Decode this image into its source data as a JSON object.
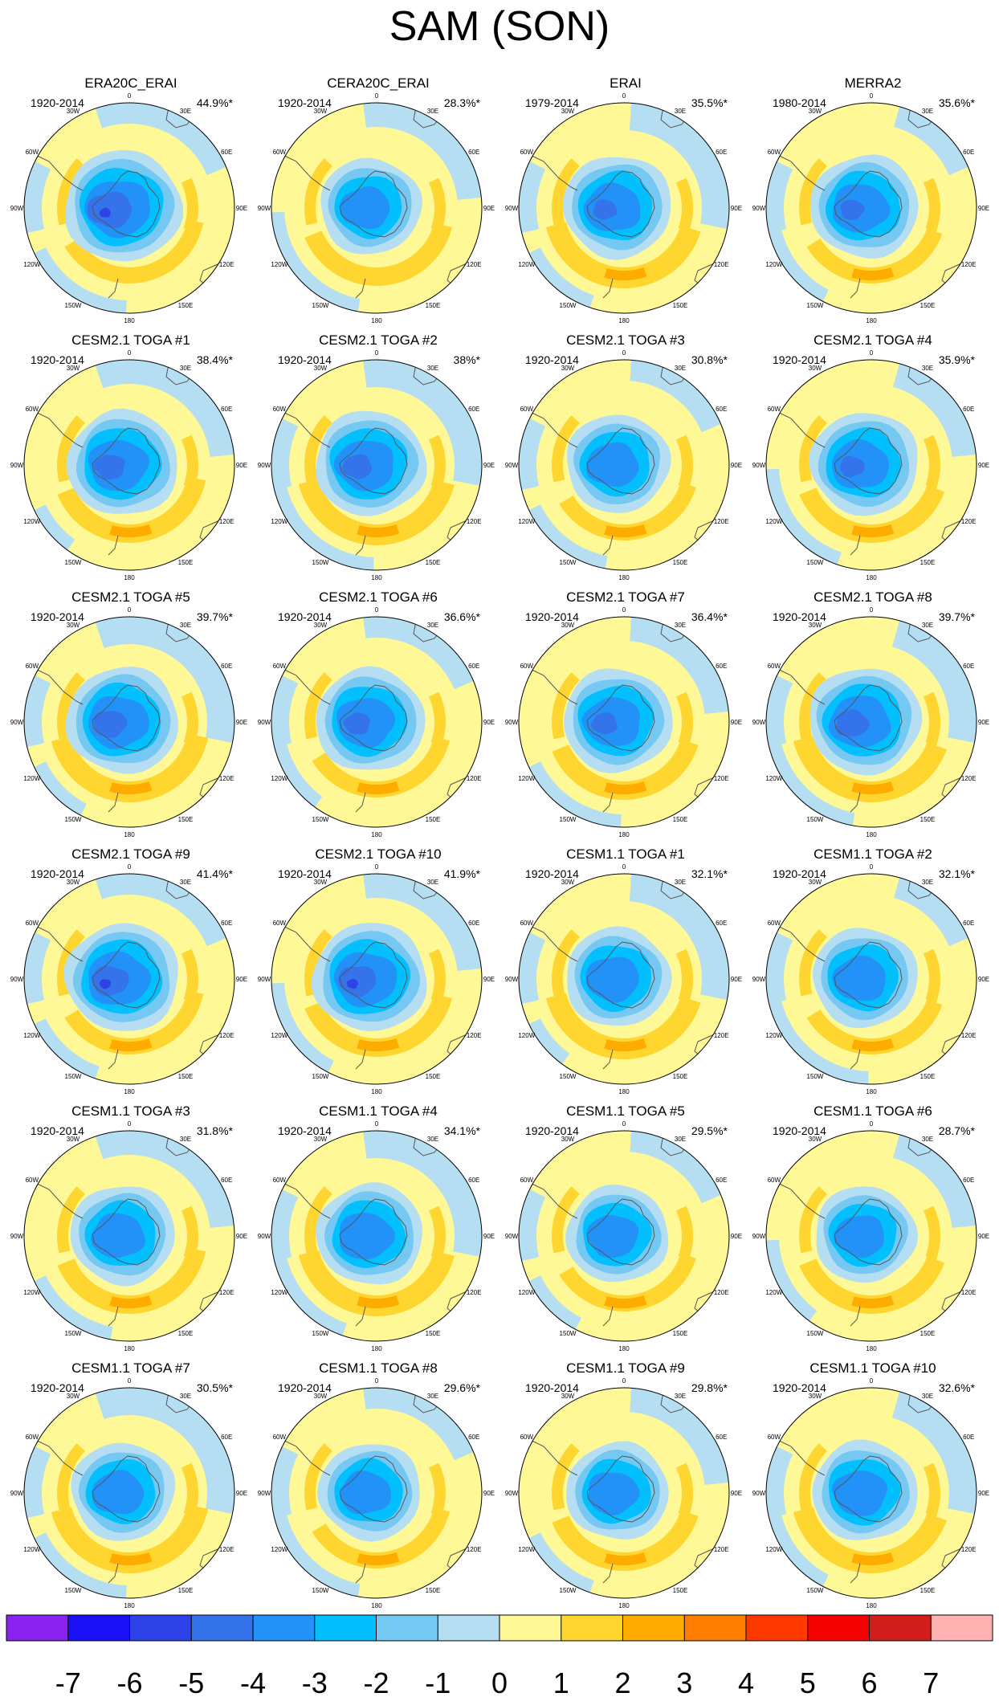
{
  "title": "SAM (SON)",
  "palette": {
    "levels": [
      -7,
      -6,
      -5,
      -4,
      -3,
      -2,
      -1,
      0,
      1,
      2,
      3,
      4,
      5,
      6,
      7
    ],
    "colors": [
      "#8a23f0",
      "#1a10f6",
      "#2d43e8",
      "#3573ea",
      "#2392f8",
      "#02bffd",
      "#75c8f2",
      "#b6def2",
      "#fef897",
      "#ffd52f",
      "#ffac00",
      "#ff7e00",
      "#ff3a00",
      "#f30000",
      "#d21d1d",
      "#ffb3b3"
    ],
    "tick_labels": [
      "-7",
      "-6",
      "-5",
      "-4",
      "-3",
      "-2",
      "-1",
      "0",
      "1",
      "2",
      "3",
      "4",
      "5",
      "6",
      "7"
    ]
  },
  "lon_labels": [
    "0",
    "30E",
    "60E",
    "90E",
    "120E",
    "150E",
    "180",
    "150W",
    "120W",
    "90W",
    "60W",
    "30W"
  ],
  "panels": [
    {
      "title": "ERA20C_ERAI",
      "period": "1920-2014",
      "pct": "44.9%*"
    },
    {
      "title": "CERA20C_ERAI",
      "period": "1920-2014",
      "pct": "28.3%*"
    },
    {
      "title": "ERAI",
      "period": "1979-2014",
      "pct": "35.5%*"
    },
    {
      "title": "MERRA2",
      "period": "1980-2014",
      "pct": "35.6%*"
    },
    {
      "title": "CESM2.1 TOGA #1",
      "period": "1920-2014",
      "pct": "38.4%*"
    },
    {
      "title": "CESM2.1 TOGA #2",
      "period": "1920-2014",
      "pct": "38%*"
    },
    {
      "title": "CESM2.1 TOGA #3",
      "period": "1920-2014",
      "pct": "30.8%*"
    },
    {
      "title": "CESM2.1 TOGA #4",
      "period": "1920-2014",
      "pct": "35.9%*"
    },
    {
      "title": "CESM2.1 TOGA #5",
      "period": "1920-2014",
      "pct": "39.7%*"
    },
    {
      "title": "CESM2.1 TOGA #6",
      "period": "1920-2014",
      "pct": "36.6%*"
    },
    {
      "title": "CESM2.1 TOGA #7",
      "period": "1920-2014",
      "pct": "36.4%*"
    },
    {
      "title": "CESM2.1 TOGA #8",
      "period": "1920-2014",
      "pct": "39.7%*"
    },
    {
      "title": "CESM2.1 TOGA #9",
      "period": "1920-2014",
      "pct": "41.4%*"
    },
    {
      "title": "CESM2.1 TOGA #10",
      "period": "1920-2014",
      "pct": "41.9%*"
    },
    {
      "title": "CESM1.1 TOGA #1",
      "period": "1920-2014",
      "pct": "32.1%*"
    },
    {
      "title": "CESM1.1 TOGA #2",
      "period": "1920-2014",
      "pct": "32.1%*"
    },
    {
      "title": "CESM1.1 TOGA #3",
      "period": "1920-2014",
      "pct": "31.8%*"
    },
    {
      "title": "CESM1.1 TOGA #4",
      "period": "1920-2014",
      "pct": "34.1%*"
    },
    {
      "title": "CESM1.1 TOGA #5",
      "period": "1920-2014",
      "pct": "29.5%*"
    },
    {
      "title": "CESM1.1 TOGA #6",
      "period": "1920-2014",
      "pct": "28.7%*"
    },
    {
      "title": "CESM1.1 TOGA #7",
      "period": "1920-2014",
      "pct": "30.5%*"
    },
    {
      "title": "CESM1.1 TOGA #8",
      "period": "1920-2014",
      "pct": "29.6%*"
    },
    {
      "title": "CESM1.1 TOGA #9",
      "period": "1920-2014",
      "pct": "29.8%*"
    },
    {
      "title": "CESM1.1 TOGA #10",
      "period": "1920-2014",
      "pct": "32.6%*"
    }
  ],
  "chart_data": {
    "type": "heatmap",
    "title": "SAM (SON)",
    "description_units": "regression / EOF pattern values, colorbar from -7 to 7",
    "colorbar": {
      "min": -7,
      "max": 7,
      "step": 1
    },
    "panel_titles": [
      "ERA20C_ERAI",
      "CERA20C_ERAI",
      "ERAI",
      "MERRA2",
      "CESM2.1 TOGA #1",
      "CESM2.1 TOGA #2",
      "CESM2.1 TOGA #3",
      "CESM2.1 TOGA #4",
      "CESM2.1 TOGA #5",
      "CESM2.1 TOGA #6",
      "CESM2.1 TOGA #7",
      "CESM2.1 TOGA #8",
      "CESM2.1 TOGA #9",
      "CESM2.1 TOGA #10",
      "CESM1.1 TOGA #1",
      "CESM1.1 TOGA #2",
      "CESM1.1 TOGA #3",
      "CESM1.1 TOGA #4",
      "CESM1.1 TOGA #5",
      "CESM1.1 TOGA #6",
      "CESM1.1 TOGA #7",
      "CESM1.1 TOGA #8",
      "CESM1.1 TOGA #9",
      "CESM1.1 TOGA #10"
    ],
    "explained_variance_pct": [
      44.9,
      28.3,
      35.5,
      35.6,
      38.4,
      38,
      30.8,
      35.9,
      39.7,
      36.6,
      36.4,
      39.7,
      41.4,
      41.9,
      32.1,
      32.1,
      31.8,
      34.1,
      29.5,
      28.7,
      30.5,
      29.6,
      29.8,
      32.6
    ]
  }
}
